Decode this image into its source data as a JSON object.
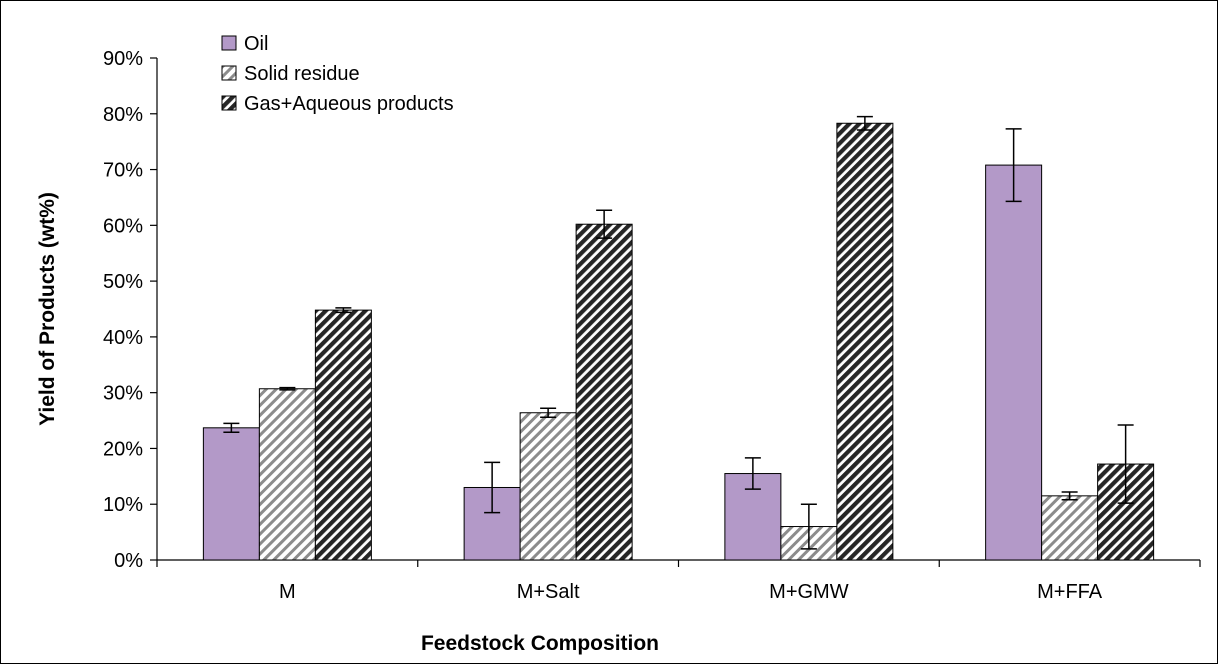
{
  "chart_data": {
    "type": "bar",
    "title": "",
    "xlabel": "Feedstock Composition",
    "ylabel": "Yield of Products (wt%)",
    "ylim": [
      0,
      90
    ],
    "y_tick_step": 10,
    "y_tick_format": "percent",
    "y_ticks": [
      "0%",
      "10%",
      "20%",
      "30%",
      "40%",
      "50%",
      "60%",
      "70%",
      "80%",
      "90%"
    ],
    "grid": false,
    "legend_position": "top-left",
    "categories": [
      "M",
      "M+Salt",
      "M+GMW",
      "M+FFA"
    ],
    "series": [
      {
        "name": "Oil",
        "fill": "solid",
        "color": "#b399c8",
        "values": [
          23.7,
          13.0,
          15.5,
          70.8
        ],
        "error": [
          0.8,
          4.5,
          2.8,
          6.5
        ]
      },
      {
        "name": "Solid residue",
        "fill": "light-diagonal-hatch",
        "color": "#8c8c8c",
        "values": [
          30.7,
          26.4,
          6.0,
          11.5
        ],
        "error": [
          0.2,
          0.8,
          4.0,
          0.7
        ]
      },
      {
        "name": "Gas+Aqueous products",
        "fill": "dark-diagonal-hatch",
        "color": "#262626",
        "values": [
          44.8,
          60.2,
          78.3,
          17.2
        ],
        "error": [
          0.4,
          2.5,
          1.2,
          7.0
        ]
      }
    ]
  }
}
